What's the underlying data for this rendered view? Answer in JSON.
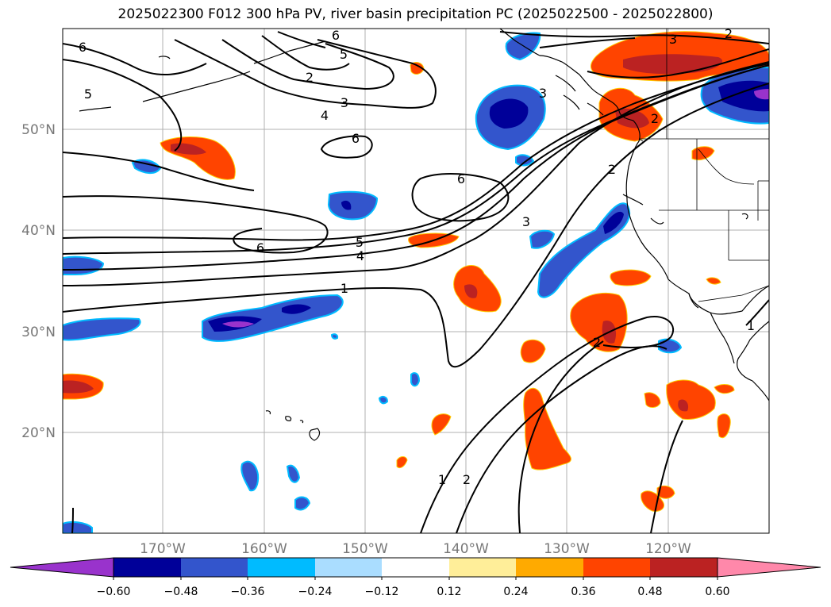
{
  "title": "2025022300 F012 300 hPa PV, river basin precipitation PC (2025022500 - 2025022800)",
  "lat_labels": [
    "50°N",
    "40°N",
    "30°N",
    "20°N"
  ],
  "lon_labels": [
    "170°W",
    "160°W",
    "150°W",
    "140°W",
    "130°W",
    "120°W"
  ],
  "colorbar": {
    "ticks": [
      "−0.60",
      "−0.48",
      "−0.36",
      "−0.24",
      "−0.12",
      "0.12",
      "0.24",
      "0.36",
      "0.48",
      "0.60"
    ],
    "colors": [
      "#9933cc",
      "#000099",
      "#3355cc",
      "#00bbff",
      "#aaddff",
      "#ffffff",
      "#ffee99",
      "#ffaa00",
      "#ff4400",
      "#bb2222",
      "#ff88aa"
    ]
  },
  "contour_labels": [
    "6",
    "5",
    "6",
    "5",
    "2",
    "3",
    "4",
    "6",
    "6",
    "6",
    "5",
    "4",
    "1",
    "3",
    "2",
    "3",
    "2",
    "2",
    "1",
    "2",
    "1",
    "3",
    "2"
  ],
  "colors": {
    "positive": "#ff4400",
    "negative": "#3355cc"
  }
}
